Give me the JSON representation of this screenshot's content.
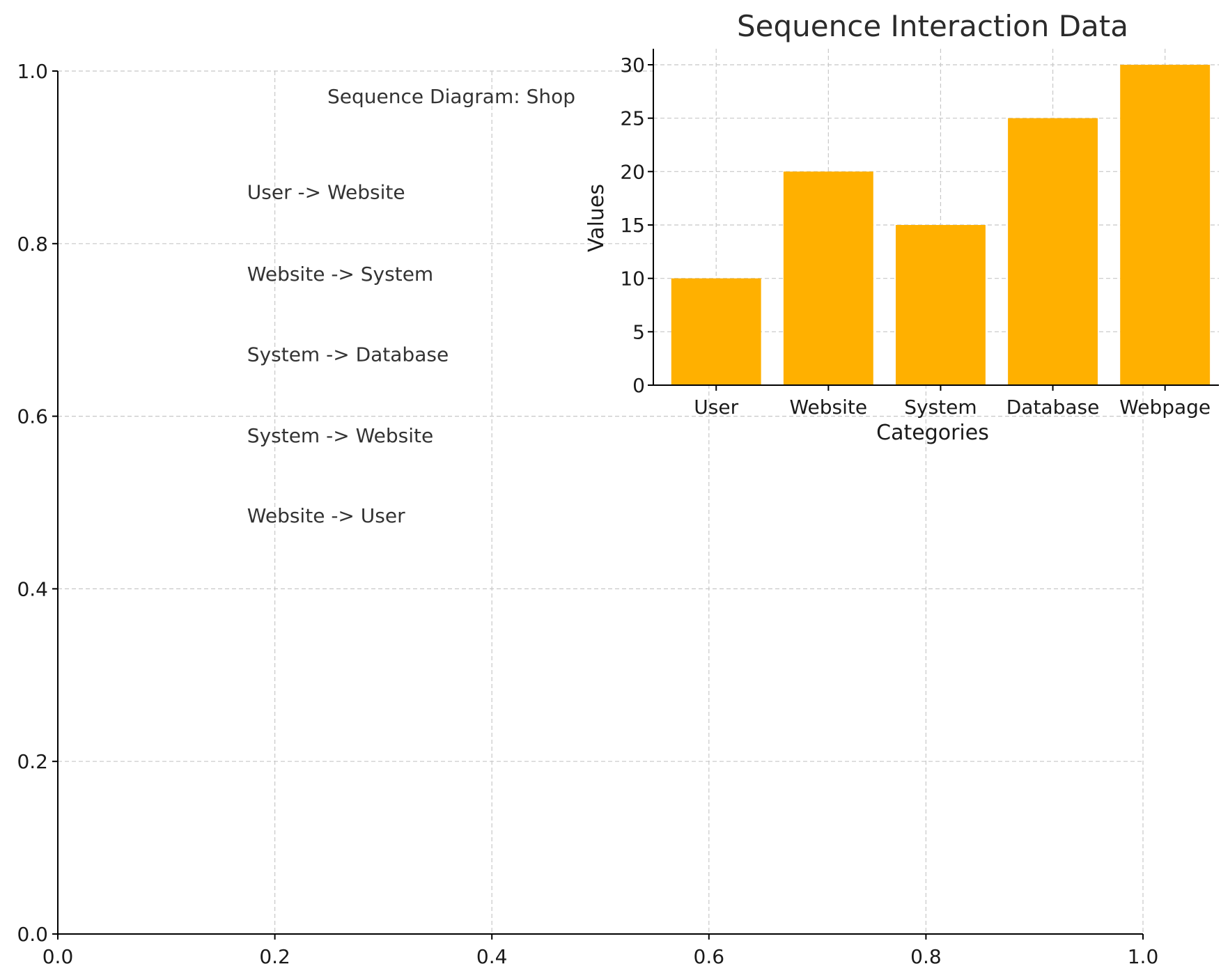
{
  "chart_data": [
    {
      "type": "scatter",
      "title": "Sequence Diagram: Shop",
      "xlim": [
        0,
        1
      ],
      "ylim": [
        0,
        1
      ],
      "x_ticks": [
        "0.0",
        "0.2",
        "0.4",
        "0.6",
        "0.8",
        "1.0"
      ],
      "y_ticks": [
        "0.0",
        "0.2",
        "0.4",
        "0.6",
        "0.8",
        "1.0"
      ],
      "grid": true,
      "annotations": [
        {
          "text": "User -> Website",
          "x": 0.1,
          "y": 0.86
        },
        {
          "text": "Website -> System",
          "x": 0.1,
          "y": 0.765
        },
        {
          "text": "System -> Database",
          "x": 0.1,
          "y": 0.672
        },
        {
          "text": "System -> Website",
          "x": 0.1,
          "y": 0.578
        },
        {
          "text": "Website -> User",
          "x": 0.1,
          "y": 0.485
        }
      ]
    },
    {
      "type": "bar",
      "title": "Sequence Interaction Data",
      "xlabel": "Categories",
      "ylabel": "Values",
      "categories": [
        "User",
        "Website",
        "System",
        "Database",
        "Webpage"
      ],
      "values": [
        10,
        20,
        15,
        25,
        30
      ],
      "ylim": [
        0,
        31.5
      ],
      "y_ticks": [
        0,
        5,
        10,
        15,
        20,
        25,
        30
      ],
      "grid": true,
      "bar_color": "#ffb000"
    }
  ]
}
